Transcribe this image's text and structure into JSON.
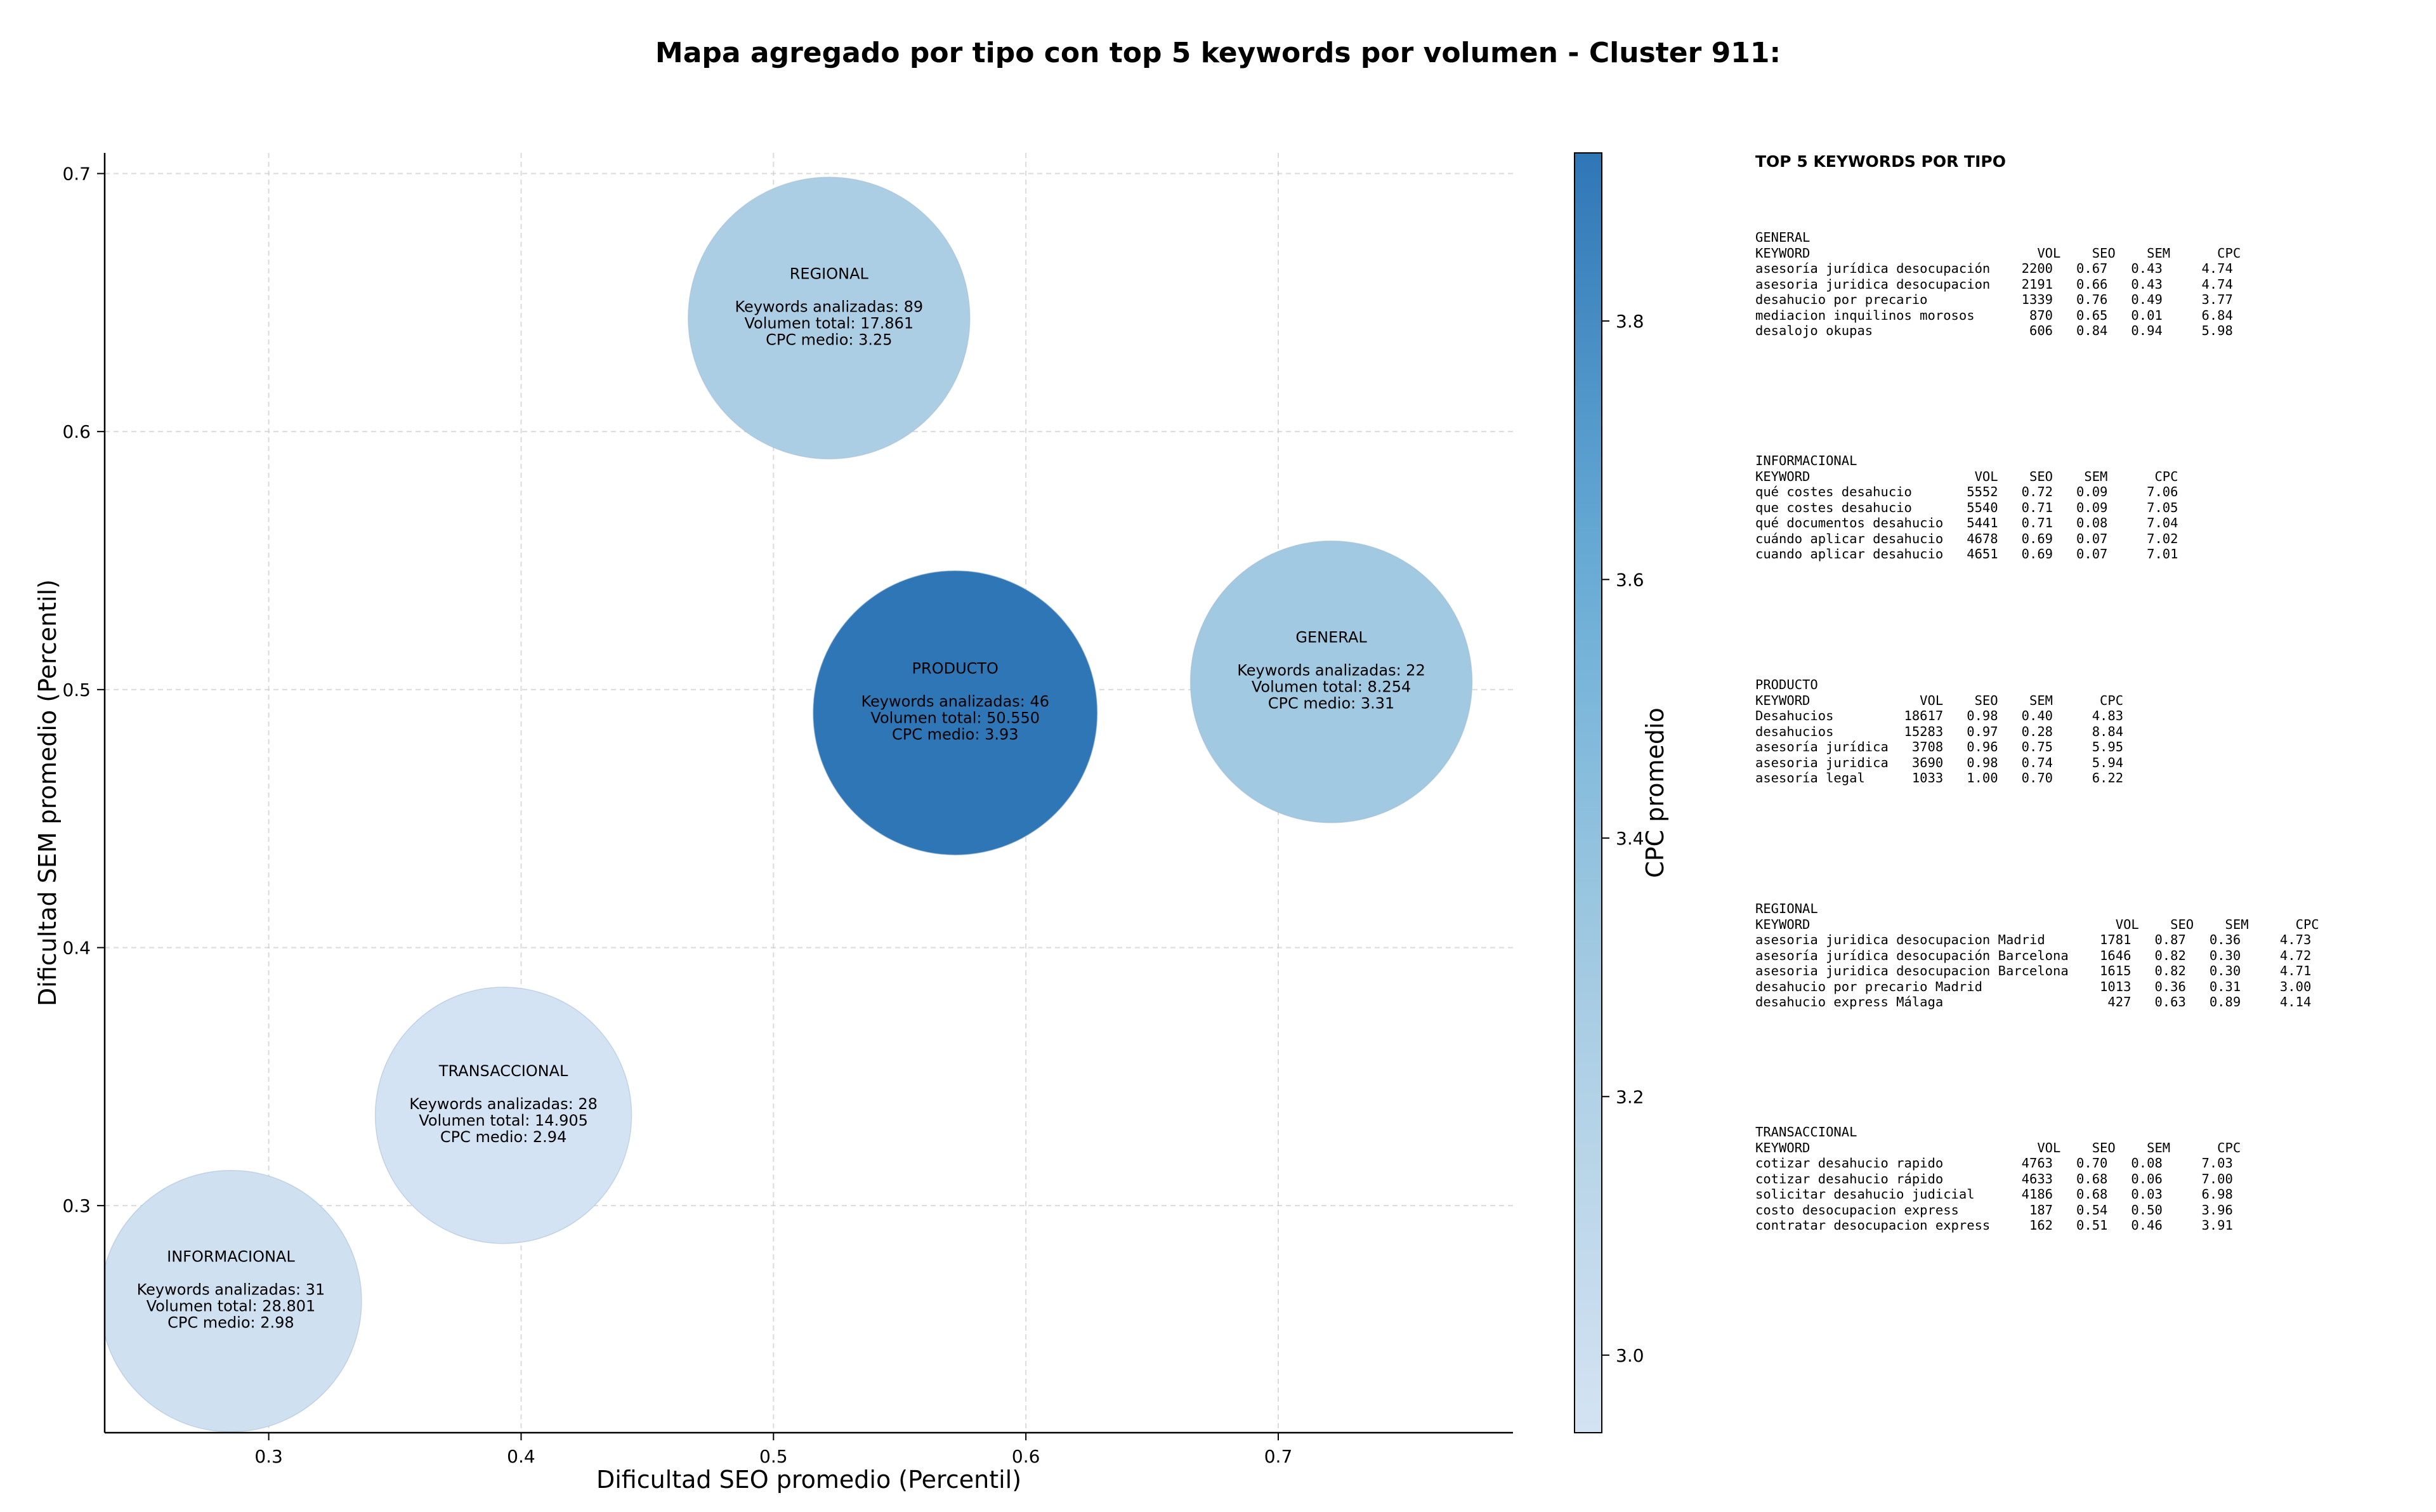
{
  "chart_data": {
    "type": "scatter",
    "title": "Mapa agregado por tipo con top 5 keywords por volumen - Cluster 911:",
    "xlabel": "Dificultad SEO promedio (Percentil)",
    "ylabel": "Dificultad SEM promedio (Percentil)",
    "xlim": [
      0.235,
      0.793
    ],
    "ylim": [
      0.212,
      0.708
    ],
    "x_ticks": [
      "0.3",
      "0.4",
      "0.5",
      "0.6",
      "0.7"
    ],
    "y_ticks": [
      "0.3",
      "0.4",
      "0.5",
      "0.6",
      "0.7"
    ],
    "grid": true,
    "colorbar": {
      "label": "CPC promedio",
      "range": [
        2.94,
        3.93
      ],
      "ticks": [
        "3.0",
        "3.2",
        "3.4",
        "3.6",
        "3.8"
      ],
      "colormap": [
        "#d4e3f3",
        "#a9cde3",
        "#6aaed6",
        "#2f76b7"
      ]
    },
    "bubbles": [
      {
        "name": "REGIONAL",
        "x": 0.522,
        "y": 0.644,
        "keywords": 89,
        "volume": 17861,
        "cpc": 3.25,
        "lines": [
          "REGIONAL",
          "",
          "Keywords analizadas: 89",
          "Volumen total: 17.861",
          "CPC medio: 3.25"
        ]
      },
      {
        "name": "PRODUCTO",
        "x": 0.572,
        "y": 0.491,
        "keywords": 46,
        "volume": 50550,
        "cpc": 3.93,
        "lines": [
          "PRODUCTO",
          "",
          "Keywords analizadas: 46",
          "Volumen total: 50.550",
          "CPC medio: 3.93"
        ]
      },
      {
        "name": "GENERAL",
        "x": 0.721,
        "y": 0.503,
        "keywords": 22,
        "volume": 8254,
        "cpc": 3.31,
        "lines": [
          "GENERAL",
          "",
          "Keywords analizadas: 22",
          "Volumen total: 8.254",
          "CPC medio: 3.31"
        ]
      },
      {
        "name": "TRANSACCIONAL",
        "x": 0.393,
        "y": 0.335,
        "keywords": 28,
        "volume": 14905,
        "cpc": 2.94,
        "lines": [
          "TRANSACCIONAL",
          "",
          "Keywords analizadas: 28",
          "Volumen total: 14.905",
          "CPC medio: 2.94"
        ]
      },
      {
        "name": "INFORMACIONAL",
        "x": 0.285,
        "y": 0.263,
        "keywords": 31,
        "volume": 28801,
        "cpc": 2.98,
        "lines": [
          "INFORMACIONAL",
          "",
          "Keywords analizadas: 31",
          "Volumen total: 28.801",
          "CPC medio: 2.98"
        ]
      }
    ]
  },
  "tables": {
    "heading": "TOP 5 KEYWORDS POR TIPO",
    "blocks": [
      {
        "name": "GENERAL",
        "text": "GENERAL\nKEYWORD                             VOL    SEO    SEM      CPC\nasesoría jurídica desocupación    2200   0.67   0.43     4.74\nasesoria juridica desocupacion    2191   0.66   0.43     4.74\ndesahucio por precario            1339   0.76   0.49     3.77\nmediacion inquilinos morosos       870   0.65   0.01     6.84\ndesalojo okupas                    606   0.84   0.94     5.98"
      },
      {
        "name": "INFORMACIONAL",
        "text": "INFORMACIONAL\nKEYWORD                     VOL    SEO    SEM      CPC\nqué costes desahucio       5552   0.72   0.09     7.06\nque costes desahucio       5540   0.71   0.09     7.05\nqué documentos desahucio   5441   0.71   0.08     7.04\ncuándo aplicar desahucio   4678   0.69   0.07     7.02\ncuando aplicar desahucio   4651   0.69   0.07     7.01"
      },
      {
        "name": "PRODUCTO",
        "text": "PRODUCTO\nKEYWORD              VOL    SEO    SEM      CPC\nDesahucios         18617   0.98   0.40     4.83\ndesahucios         15283   0.97   0.28     8.84\nasesoría jurídica   3708   0.96   0.75     5.95\nasesoria juridica   3690   0.98   0.74     5.94\nasesoría legal      1033   1.00   0.70     6.22"
      },
      {
        "name": "REGIONAL",
        "text": "REGIONAL\nKEYWORD                                       VOL    SEO    SEM      CPC\nasesoria juridica desocupacion Madrid       1781   0.87   0.36     4.73\nasesoría jurídica desocupación Barcelona    1646   0.82   0.30     4.72\nasesoria juridica desocupacion Barcelona    1615   0.82   0.30     4.71\ndesahucio por precario Madrid               1013   0.36   0.31     3.00\ndesahucio express Málaga                     427   0.63   0.89     4.14"
      },
      {
        "name": "TRANSACCIONAL",
        "text": "TRANSACCIONAL\nKEYWORD                             VOL    SEO    SEM      CPC\ncotizar desahucio rapido          4763   0.70   0.08     7.03\ncotizar desahucio rápido          4633   0.68   0.06     7.00\nsolicitar desahucio judicial      4186   0.68   0.03     6.98\ncosto desocupacion express         187   0.54   0.50     3.96\ncontratar desocupacion express     162   0.51   0.46     3.91"
      }
    ]
  }
}
